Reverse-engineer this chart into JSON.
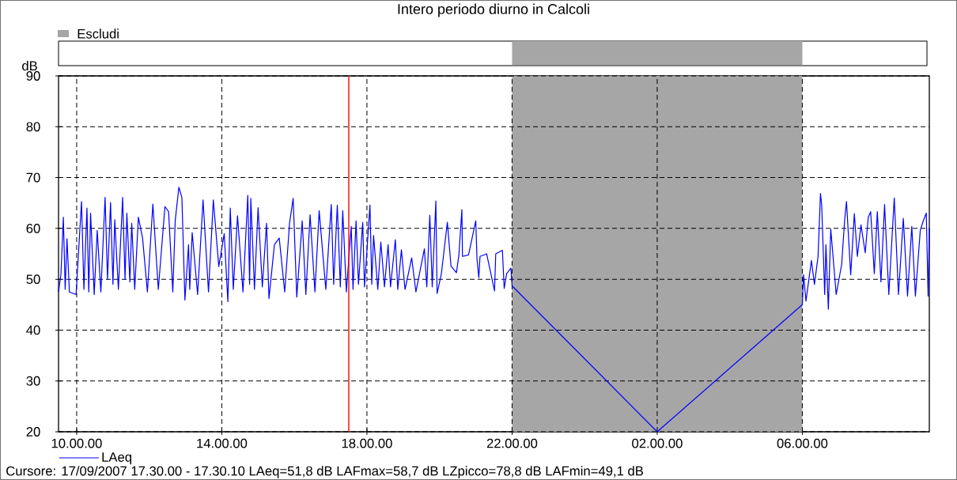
{
  "chart_data": {
    "type": "line",
    "title": "Intero periodo diurno in Calcoli",
    "ylabel": "dB",
    "x": [
      "2007-09-17T09:30",
      "2007-09-17T09:34",
      "2007-09-17T09:38",
      "2007-09-17T09:41",
      "2007-09-17T09:44",
      "2007-09-17T09:48",
      "2007-09-17T09:59",
      "2007-09-17T10:08",
      "2007-09-17T10:12",
      "2007-09-17T10:17",
      "2007-09-17T10:20",
      "2007-09-17T10:23",
      "2007-09-17T10:29",
      "2007-09-17T10:34",
      "2007-09-17T10:40",
      "2007-09-17T10:47",
      "2007-09-17T10:51",
      "2007-09-17T10:56",
      "2007-09-17T11:00",
      "2007-09-17T11:03",
      "2007-09-17T11:09",
      "2007-09-17T11:16",
      "2007-09-17T11:20",
      "2007-09-17T11:23",
      "2007-09-17T11:28",
      "2007-09-17T11:31",
      "2007-09-17T11:36",
      "2007-09-17T11:42",
      "2007-09-17T11:49",
      "2007-09-17T11:57",
      "2007-09-17T12:06",
      "2007-09-17T12:15",
      "2007-09-17T12:26",
      "2007-09-17T12:32",
      "2007-09-17T12:39",
      "2007-09-17T12:43",
      "2007-09-17T12:49",
      "2007-09-17T12:54",
      "2007-09-17T12:59",
      "2007-09-17T13:05",
      "2007-09-17T13:07",
      "2007-09-17T13:11",
      "2007-09-17T13:20",
      "2007-09-17T13:29",
      "2007-09-17T13:38",
      "2007-09-17T13:46",
      "2007-09-17T13:55",
      "2007-09-17T14:04",
      "2007-09-17T14:10",
      "2007-09-17T14:14",
      "2007-09-17T14:19",
      "2007-09-17T14:26",
      "2007-09-17T14:35",
      "2007-09-17T14:43",
      "2007-09-17T14:46",
      "2007-09-17T14:48",
      "2007-09-17T14:54",
      "2007-09-17T15:00",
      "2007-09-17T15:07",
      "2007-09-17T15:14",
      "2007-09-17T15:18",
      "2007-09-17T15:27",
      "2007-09-17T15:35",
      "2007-09-17T15:44",
      "2007-09-17T15:52",
      "2007-09-17T15:58",
      "2007-09-17T16:04",
      "2007-09-17T16:13",
      "2007-09-17T16:19",
      "2007-09-17T16:26",
      "2007-09-17T16:34",
      "2007-09-17T16:41",
      "2007-09-17T16:52",
      "2007-09-17T17:01",
      "2007-09-17T17:05",
      "2007-09-17T17:11",
      "2007-09-17T17:16",
      "2007-09-17T17:20",
      "2007-09-17T17:26",
      "2007-09-17T17:34",
      "2007-09-17T17:37",
      "2007-09-17T17:42",
      "2007-09-17T17:46",
      "2007-09-17T17:53",
      "2007-09-17T17:56",
      "2007-09-17T18:05",
      "2007-09-17T18:08",
      "2007-09-17T18:11",
      "2007-09-17T18:18",
      "2007-09-17T18:23",
      "2007-09-17T18:29",
      "2007-09-17T18:35",
      "2007-09-17T18:39",
      "2007-09-17T18:47",
      "2007-09-17T18:51",
      "2007-09-17T18:57",
      "2007-09-17T19:03",
      "2007-09-17T19:14",
      "2007-09-17T19:21",
      "2007-09-17T19:35",
      "2007-09-17T19:39",
      "2007-09-17T19:44",
      "2007-09-17T19:48",
      "2007-09-17T19:54",
      "2007-09-17T19:56",
      "2007-09-17T20:03",
      "2007-09-17T20:13",
      "2007-09-17T20:19",
      "2007-09-17T20:28",
      "2007-09-17T20:32",
      "2007-09-17T20:37",
      "2007-09-17T20:38",
      "2007-09-17T20:48",
      "2007-09-17T21:00",
      "2007-09-17T21:02",
      "2007-09-17T21:05",
      "2007-09-17T21:07",
      "2007-09-17T21:18",
      "2007-09-17T21:31",
      "2007-09-17T21:33",
      "2007-09-17T21:44",
      "2007-09-17T21:47",
      "2007-09-17T21:51",
      "2007-09-17T21:58",
      "2007-09-17T22:00",
      "2007-09-18T02:00",
      "2007-09-18T06:00",
      "2007-09-18T06:02",
      "2007-09-18T06:06",
      "2007-09-18T06:15",
      "2007-09-18T06:20",
      "2007-09-18T06:26",
      "2007-09-18T06:30",
      "2007-09-18T06:32",
      "2007-09-18T06:37",
      "2007-09-18T06:39",
      "2007-09-18T06:43",
      "2007-09-18T06:47",
      "2007-09-18T06:56",
      "2007-09-18T07:05",
      "2007-09-18T07:10",
      "2007-09-18T07:13",
      "2007-09-18T07:20",
      "2007-09-18T07:26",
      "2007-09-18T07:31",
      "2007-09-18T07:37",
      "2007-09-18T07:44",
      "2007-09-18T07:49",
      "2007-09-18T07:53",
      "2007-09-18T07:59",
      "2007-09-18T08:04",
      "2007-09-18T08:10",
      "2007-09-18T08:16",
      "2007-09-18T08:23",
      "2007-09-18T08:32",
      "2007-09-18T08:39",
      "2007-09-18T08:47",
      "2007-09-18T08:54",
      "2007-09-18T09:01",
      "2007-09-18T09:07",
      "2007-09-18T09:15",
      "2007-09-18T09:20",
      "2007-09-18T09:25",
      "2007-09-18T09:28",
      "2007-09-18T09:30"
    ],
    "series": [
      {
        "name": "LAeq",
        "color": "#0000ff",
        "values": [
          47.5,
          51,
          62.2,
          48,
          58,
          47.5,
          47,
          65.3,
          48,
          64,
          47.5,
          63,
          47,
          59.6,
          47.5,
          66.1,
          50,
          65.1,
          49,
          61.7,
          48,
          66.1,
          50,
          63,
          49.5,
          61,
          48,
          62.2,
          58.1,
          47.5,
          64.8,
          48,
          64.3,
          63.3,
          47.5,
          61.6,
          68.1,
          66.1,
          45.9,
          56.8,
          48,
          59.2,
          47,
          65.6,
          47.5,
          65.6,
          52.5,
          59,
          45.6,
          64,
          48,
          62.5,
          47.5,
          66.5,
          49,
          65.9,
          48,
          64.1,
          48.5,
          61,
          46.2,
          56.8,
          58.1,
          47.5,
          61,
          65.9,
          46.5,
          61.5,
          47,
          62.7,
          47.5,
          63.5,
          48,
          64.7,
          49,
          64.6,
          48.5,
          63.5,
          47.5,
          60.4,
          48,
          61.5,
          49,
          61.2,
          48.5,
          64.6,
          49,
          58.6,
          48,
          57.3,
          48.5,
          56.8,
          48.5,
          57.8,
          48,
          55.8,
          48,
          54.2,
          47.5,
          56,
          48.5,
          62.6,
          48.5,
          65.4,
          47.2,
          51,
          61.2,
          52.6,
          51.3,
          54.7,
          63.7,
          54.5,
          54.8,
          61.5,
          54,
          50.3,
          54.5,
          55,
          47.7,
          55,
          55.7,
          48.2,
          51.1,
          52.2,
          48.7,
          20,
          45,
          50.9,
          45.7,
          53.7,
          49,
          54.5,
          66.9,
          64.6,
          47,
          56.8,
          44.1,
          59.9,
          47,
          52.9,
          61.7,
          65.3,
          50.9,
          62.9,
          54.5,
          60.7,
          55.2,
          62.2,
          63.3,
          51.1,
          63.3,
          49.5,
          64.7,
          47,
          66,
          47,
          62,
          46.7,
          60.4,
          46.7,
          59.6,
          61.5,
          63,
          46.7,
          60
        ]
      }
    ],
    "xlim": [
      "2007-09-17T09:30",
      "2007-09-18T09:30"
    ],
    "xticks": [
      {
        "value": "2007-09-17T10:00",
        "label": "10.00.00"
      },
      {
        "value": "2007-09-17T14:00",
        "label": "14.00.00"
      },
      {
        "value": "2007-09-17T18:00",
        "label": "18.00.00"
      },
      {
        "value": "2007-09-17T22:00",
        "label": "22.00.00"
      },
      {
        "value": "2007-09-18T02:00",
        "label": "02.00.00"
      },
      {
        "value": "2007-09-18T06:00",
        "label": "06.00.00"
      }
    ],
    "ylim": [
      20,
      90
    ],
    "yticks": [
      20,
      30,
      40,
      50,
      60,
      70,
      80,
      90
    ],
    "grid": true,
    "legend": "top left",
    "line_style": "solid",
    "ref_lines": [
      {
        "axis": "x",
        "value": "2007-09-17T17:30",
        "color": "#ff0000"
      }
    ],
    "bands": [
      {
        "axis": "x",
        "from": "2007-09-17T22:00",
        "to": "2007-09-18T06:00",
        "label": "Escludi",
        "color": "#a6a6a6"
      }
    ],
    "annotations": [
      "Cursore: 17/09/2007 17.30.00 - 17.30.10 LAeq=51,8 dB LAFmax=58,7 dB LZpicco=78,8 dB LAFmin=49,1 dB"
    ]
  }
}
